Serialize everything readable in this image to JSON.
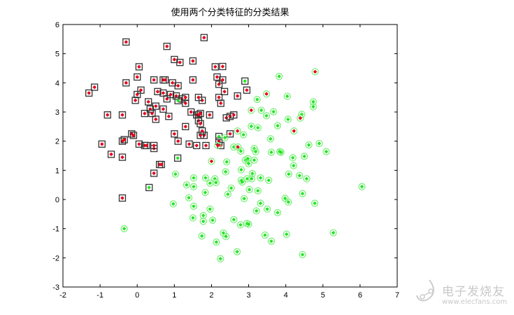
{
  "chart_data": {
    "type": "scatter",
    "title": "使用两个分类特征的分类结果",
    "xlabel": "",
    "ylabel": "",
    "xlim": [
      -2,
      7
    ],
    "ylim": [
      -3,
      6
    ],
    "xticks": [
      "-2",
      "-1",
      "0",
      "1",
      "2",
      "3",
      "4",
      "5",
      "6",
      "7"
    ],
    "yticks": [
      "-3",
      "-2",
      "-1",
      "0",
      "1",
      "2",
      "3",
      "4",
      "5",
      "6"
    ],
    "grid": false,
    "colors": {
      "class1_box": "#000000",
      "red_dot": "#e8001a",
      "green_dot": "#22e622",
      "class2_ring": "#7ef07e"
    },
    "series": [
      {
        "marker": "square",
        "dot_color": "red",
        "points": [
          [
            -1.3,
            3.65
          ],
          [
            -1.15,
            3.85
          ],
          [
            -0.8,
            2.9
          ],
          [
            -0.95,
            1.9
          ],
          [
            -0.7,
            1.55
          ],
          [
            -0.4,
            1.45
          ],
          [
            -0.4,
            2.0
          ],
          [
            -0.35,
            2.05
          ],
          [
            -0.4,
            2.9
          ],
          [
            -0.3,
            4.0
          ],
          [
            -0.3,
            5.4
          ],
          [
            -0.4,
            0.05
          ],
          [
            -0.15,
            2.25
          ],
          [
            -0.1,
            2.2
          ],
          [
            -0.05,
            3.4
          ],
          [
            0.0,
            4.2
          ],
          [
            0.05,
            4.55
          ],
          [
            0.0,
            3.6
          ],
          [
            0.1,
            3.75
          ],
          [
            0.05,
            1.9
          ],
          [
            0.2,
            1.85
          ],
          [
            0.25,
            1.85
          ],
          [
            0.2,
            2.95
          ],
          [
            0.35,
            3.1
          ],
          [
            0.3,
            3.35
          ],
          [
            0.4,
            2.95
          ],
          [
            0.45,
            1.75
          ],
          [
            0.45,
            1.85
          ],
          [
            0.45,
            0.9
          ],
          [
            0.45,
            4.1
          ],
          [
            0.5,
            3.2
          ],
          [
            0.5,
            2.75
          ],
          [
            0.6,
            1.2
          ],
          [
            0.65,
            1.2
          ],
          [
            0.55,
            3.7
          ],
          [
            0.7,
            3.65
          ],
          [
            0.7,
            4.1
          ],
          [
            0.75,
            4.1
          ],
          [
            0.7,
            3.1
          ],
          [
            0.8,
            5.25
          ],
          [
            0.8,
            3.45
          ],
          [
            0.9,
            3.6
          ],
          [
            0.85,
            2.85
          ],
          [
            0.95,
            4.0
          ],
          [
            1.0,
            4.8
          ],
          [
            1.05,
            3.55
          ],
          [
            1.15,
            4.7
          ],
          [
            1.1,
            3.9
          ],
          [
            1.2,
            3.45
          ],
          [
            1.0,
            2.25
          ],
          [
            1.1,
            2.0
          ],
          [
            1.3,
            3.5
          ],
          [
            1.3,
            3.3
          ],
          [
            1.3,
            2.5
          ],
          [
            1.4,
            1.9
          ],
          [
            1.5,
            4.75
          ],
          [
            1.5,
            4.1
          ],
          [
            1.45,
            3.0
          ],
          [
            1.6,
            2.9
          ],
          [
            1.65,
            2.9
          ],
          [
            1.7,
            2.95
          ],
          [
            1.65,
            2.7
          ],
          [
            1.7,
            2.6
          ],
          [
            1.75,
            3.4
          ],
          [
            1.65,
            3.5
          ],
          [
            1.8,
            5.55
          ],
          [
            1.8,
            2.2
          ],
          [
            1.7,
            2.2
          ],
          [
            1.75,
            2.35
          ],
          [
            1.6,
            1.85
          ],
          [
            1.85,
            1.85
          ],
          [
            1.95,
            2.9
          ],
          [
            2.1,
            4.55
          ],
          [
            2.15,
            4.2
          ],
          [
            2.2,
            3.95
          ],
          [
            2.2,
            3.5
          ],
          [
            2.25,
            3.3
          ],
          [
            2.35,
            3.7
          ],
          [
            2.3,
            4.56
          ],
          [
            2.3,
            4.1
          ],
          [
            2.4,
            2.8
          ],
          [
            2.5,
            2.85
          ],
          [
            2.6,
            2.9
          ],
          [
            2.5,
            2.25
          ],
          [
            2.2,
            2.0
          ],
          [
            2.25,
            1.85
          ],
          [
            2.95,
            3.75
          ],
          [
            2.7,
            3.55
          ]
        ]
      },
      {
        "marker": "square",
        "dot_color": "green",
        "points": [
          [
            1.1,
            3.39
          ],
          [
            2.2,
            2.16
          ],
          [
            1.09,
            1.42
          ],
          [
            0.32,
            0.41
          ],
          [
            2.9,
            4.06
          ]
        ]
      },
      {
        "marker": "circle",
        "dot_color": "green",
        "points": [
          [
            3.82,
            4.22
          ],
          [
            4.04,
            3.54
          ],
          [
            3.23,
            3.43
          ],
          [
            3.34,
            3.06
          ],
          [
            3.48,
            2.87
          ],
          [
            3.67,
            3.01
          ],
          [
            4.06,
            2.75
          ],
          [
            4.74,
            3.35
          ],
          [
            4.74,
            3.18
          ],
          [
            4.43,
            2.92
          ],
          [
            3.07,
            2.51
          ],
          [
            3.25,
            2.46
          ],
          [
            3.78,
            2.53
          ],
          [
            2.86,
            2.22
          ],
          [
            3.59,
            2.08
          ],
          [
            2.36,
            2.12
          ],
          [
            4.62,
            1.87
          ],
          [
            4.9,
            1.92
          ],
          [
            5.09,
            1.64
          ],
          [
            3.61,
            1.62
          ],
          [
            3.84,
            1.64
          ],
          [
            3.87,
            1.62
          ],
          [
            4.19,
            1.43
          ],
          [
            4.5,
            1.48
          ],
          [
            4.21,
            1.16
          ],
          [
            2.6,
            1.8
          ],
          [
            2.79,
            1.66
          ],
          [
            3.15,
            1.75
          ],
          [
            3.19,
            1.64
          ],
          [
            2.91,
            1.35
          ],
          [
            2.98,
            1.4
          ],
          [
            3.0,
            1.23
          ],
          [
            3.15,
            1.35
          ],
          [
            2.41,
            1.29
          ],
          [
            2.8,
            1.02
          ],
          [
            3.1,
            0.89
          ],
          [
            2.38,
            0.95
          ],
          [
            4.08,
            0.87
          ],
          [
            4.37,
            0.82
          ],
          [
            4.56,
            0.71
          ],
          [
            1.03,
            0.87
          ],
          [
            1.52,
            0.74
          ],
          [
            1.84,
            0.74
          ],
          [
            2.09,
            0.71
          ],
          [
            2.12,
            0.58
          ],
          [
            1.96,
            0.56
          ],
          [
            1.33,
            0.5
          ],
          [
            1.52,
            0.44
          ],
          [
            2.8,
            0.66
          ],
          [
            2.83,
            0.6
          ],
          [
            2.96,
            0.71
          ],
          [
            3.08,
            0.71
          ],
          [
            3.32,
            0.74
          ],
          [
            3.54,
            0.66
          ],
          [
            2.53,
            0.39
          ],
          [
            2.44,
            0.18
          ],
          [
            3.02,
            0.34
          ],
          [
            3.25,
            0.3
          ],
          [
            1.83,
            0.24
          ],
          [
            1.39,
            0.06
          ],
          [
            2.88,
            0.03
          ],
          [
            3.98,
            0.04
          ],
          [
            4.07,
            -0.09
          ],
          [
            4.45,
            0.2
          ],
          [
            4.78,
            -0.13
          ],
          [
            6.05,
            0.44
          ],
          [
            0.97,
            -0.15
          ],
          [
            1.52,
            -0.23
          ],
          [
            1.96,
            -0.33
          ],
          [
            3.32,
            -0.13
          ],
          [
            3.5,
            -0.33
          ],
          [
            3.21,
            -0.39
          ],
          [
            3.78,
            -0.45
          ],
          [
            1.78,
            -0.55
          ],
          [
            1.78,
            -0.75
          ],
          [
            2.03,
            -0.71
          ],
          [
            1.5,
            -0.63
          ],
          [
            2.6,
            -0.69
          ],
          [
            2.78,
            -0.87
          ],
          [
            2.95,
            -0.82
          ],
          [
            3.0,
            -0.85
          ],
          [
            1.74,
            -1.25
          ],
          [
            2.32,
            -1.15
          ],
          [
            2.39,
            -1.27
          ],
          [
            2.13,
            -1.46
          ],
          [
            3.44,
            -1.22
          ],
          [
            3.61,
            -1.43
          ],
          [
            4.02,
            -1.19
          ],
          [
            5.28,
            -1.14
          ],
          [
            2.69,
            -1.79
          ],
          [
            2.24,
            -2.03
          ],
          [
            4.45,
            -1.89
          ],
          [
            -0.35,
            -1.0
          ]
        ]
      },
      {
        "marker": "circle",
        "dot_color": "red",
        "points": [
          [
            4.79,
            4.38
          ],
          [
            3.48,
            3.62
          ],
          [
            3.07,
            3.06
          ],
          [
            2.7,
            2.35
          ],
          [
            4.22,
            2.35
          ],
          [
            4.39,
            2.79
          ],
          [
            2.17,
            1.85
          ],
          [
            2.71,
            1.8
          ],
          [
            2.0,
            1.31
          ]
        ]
      }
    ]
  },
  "watermark": {
    "cn": "电子发烧友",
    "en": "www.elecfans.com"
  }
}
